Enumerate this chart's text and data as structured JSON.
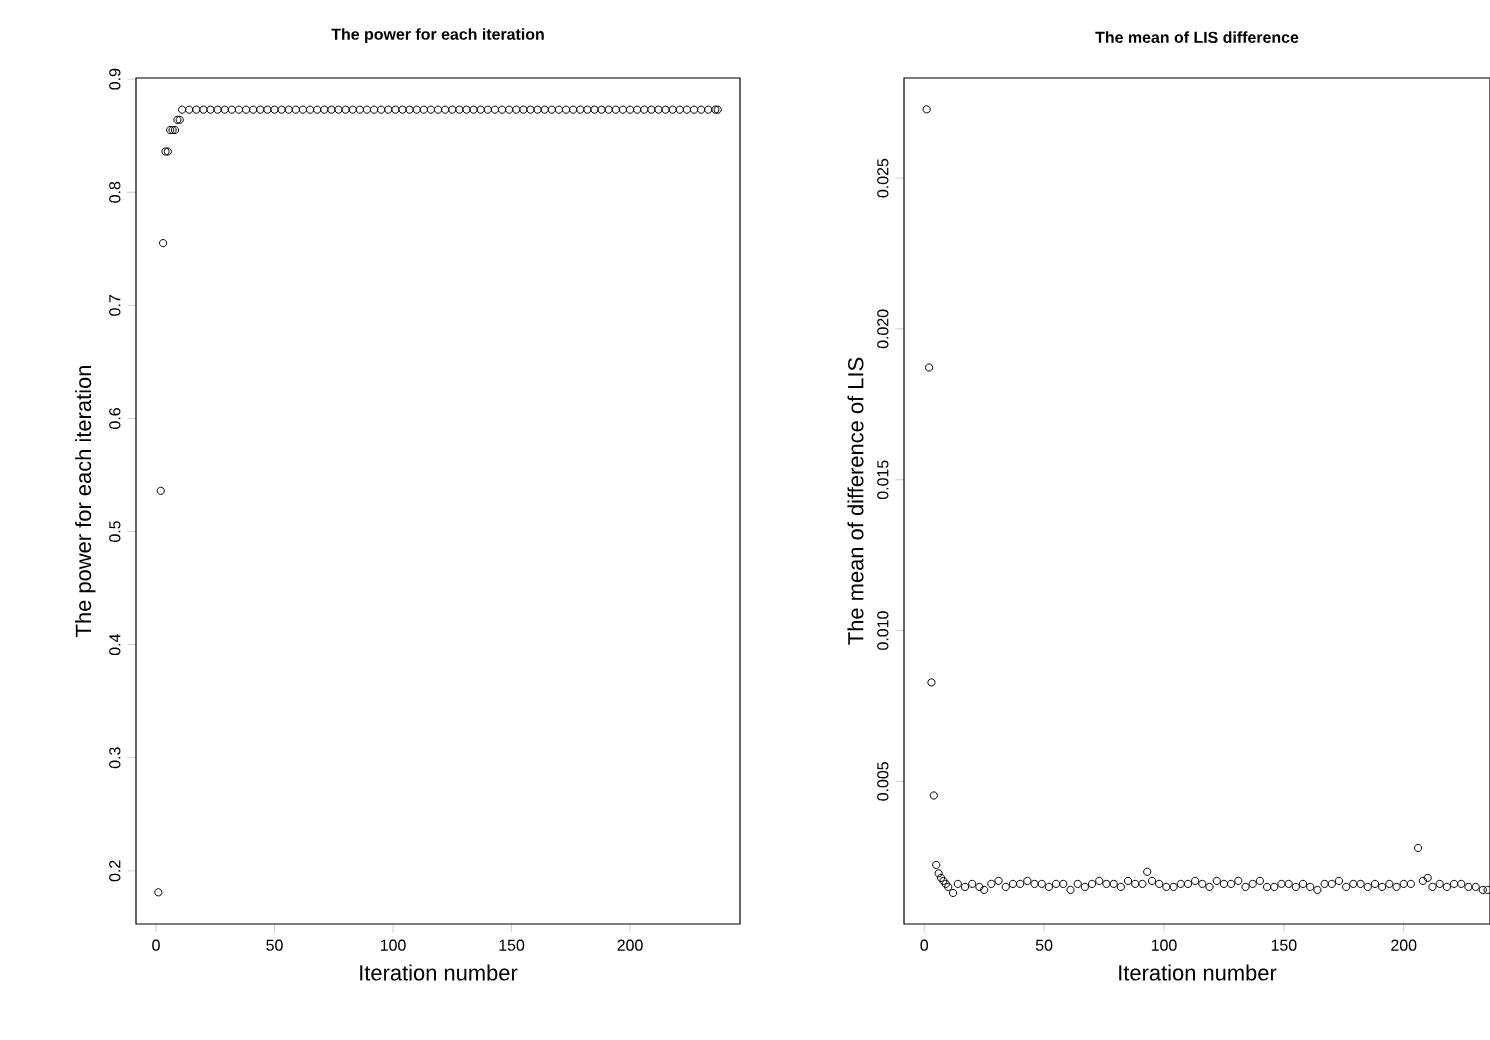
{
  "chart_data": [
    {
      "type": "scatter",
      "title": "The power for each iteration",
      "xlabel": "Iteration number",
      "ylabel": "The power for each iteration",
      "marker": "circle",
      "color": "#000000",
      "xlim": [
        -8.44,
        246.4
      ],
      "ylim": [
        0.153,
        0.901
      ],
      "xticks": [
        0,
        50,
        100,
        150,
        200
      ],
      "yticks": [
        0.2,
        0.3,
        0.4,
        0.5,
        0.6,
        0.7,
        0.8,
        0.9
      ],
      "x": [
        1,
        2,
        3,
        4,
        5,
        6,
        7,
        8,
        9,
        10,
        11,
        14,
        17,
        20,
        23,
        26,
        29,
        32,
        35,
        38,
        41,
        44,
        47,
        50,
        53,
        56,
        59,
        62,
        65,
        68,
        71,
        74,
        77,
        80,
        83,
        86,
        89,
        92,
        95,
        98,
        101,
        104,
        107,
        110,
        113,
        116,
        119,
        122,
        125,
        128,
        131,
        134,
        137,
        140,
        143,
        146,
        149,
        152,
        155,
        158,
        161,
        164,
        167,
        170,
        173,
        176,
        179,
        182,
        185,
        188,
        191,
        194,
        197,
        200,
        203,
        206,
        209,
        212,
        215,
        218,
        221,
        224,
        227,
        230,
        233,
        236,
        237
      ],
      "values": [
        0.181,
        0.536,
        0.755,
        0.836,
        0.836,
        0.855,
        0.855,
        0.855,
        0.864,
        0.864,
        0.873,
        0.873,
        0.873,
        0.873,
        0.873,
        0.873,
        0.873,
        0.873,
        0.873,
        0.873,
        0.873,
        0.873,
        0.873,
        0.873,
        0.873,
        0.873,
        0.873,
        0.873,
        0.873,
        0.873,
        0.873,
        0.873,
        0.873,
        0.873,
        0.873,
        0.873,
        0.873,
        0.873,
        0.873,
        0.873,
        0.873,
        0.873,
        0.873,
        0.873,
        0.873,
        0.873,
        0.873,
        0.873,
        0.873,
        0.873,
        0.873,
        0.873,
        0.873,
        0.873,
        0.873,
        0.873,
        0.873,
        0.873,
        0.873,
        0.873,
        0.873,
        0.873,
        0.873,
        0.873,
        0.873,
        0.873,
        0.873,
        0.873,
        0.873,
        0.873,
        0.873,
        0.873,
        0.873,
        0.873,
        0.873,
        0.873,
        0.873,
        0.873,
        0.873,
        0.873,
        0.873,
        0.873,
        0.873,
        0.873,
        0.873,
        0.873,
        0.873
      ]
    },
    {
      "type": "scatter",
      "title": "The mean of LIS difference",
      "xlabel": "Iteration number",
      "ylabel": "The mean of difference of LIS",
      "marker": "circle",
      "color": "#000000",
      "xlim": [
        -8.44,
        236
      ],
      "ylim": [
        0.00027,
        0.02832
      ],
      "xticks": [
        0,
        50,
        100,
        150,
        200
      ],
      "yticks": [
        0.005,
        {
          "value": 0.01,
          "label": "0.010"
        },
        0.015,
        {
          "value": 0.02,
          "label": "0.020"
        },
        0.025
      ],
      "x": [
        1,
        2,
        3,
        4,
        5,
        6,
        7,
        8,
        9,
        10,
        12,
        14,
        17,
        20,
        23,
        25,
        28,
        31,
        34,
        37,
        40,
        43,
        46,
        49,
        52,
        55,
        58,
        61,
        64,
        67,
        70,
        73,
        76,
        79,
        82,
        85,
        88,
        91,
        93,
        95,
        98,
        101,
        104,
        107,
        110,
        113,
        116,
        119,
        122,
        125,
        128,
        131,
        134,
        137,
        140,
        143,
        146,
        149,
        152,
        155,
        158,
        161,
        164,
        167,
        170,
        173,
        176,
        179,
        182,
        185,
        188,
        191,
        194,
        197,
        200,
        203,
        206,
        208,
        210,
        212,
        215,
        218,
        221,
        224,
        227,
        230,
        233,
        235
      ],
      "values": [
        0.02728,
        0.01872,
        0.00828,
        0.00453,
        0.00223,
        0.00195,
        0.0018,
        0.0017,
        0.0016,
        0.0015,
        0.0013,
        0.0016,
        0.0015,
        0.0016,
        0.0015,
        0.0014,
        0.0016,
        0.0017,
        0.0015,
        0.0016,
        0.0016,
        0.0017,
        0.0016,
        0.0016,
        0.0015,
        0.0016,
        0.0016,
        0.0014,
        0.0016,
        0.0015,
        0.0016,
        0.0017,
        0.0016,
        0.0016,
        0.0015,
        0.0017,
        0.0016,
        0.0016,
        0.002,
        0.0017,
        0.0016,
        0.0015,
        0.0015,
        0.0016,
        0.0016,
        0.0017,
        0.0016,
        0.0015,
        0.0017,
        0.0016,
        0.0016,
        0.0017,
        0.0015,
        0.0016,
        0.0017,
        0.0015,
        0.0015,
        0.0016,
        0.0016,
        0.0015,
        0.0016,
        0.0015,
        0.0014,
        0.0016,
        0.0016,
        0.0017,
        0.0015,
        0.0016,
        0.0016,
        0.0015,
        0.0016,
        0.0015,
        0.0016,
        0.0015,
        0.0016,
        0.0016,
        0.00279,
        0.0017,
        0.0018,
        0.0015,
        0.0016,
        0.0015,
        0.0016,
        0.0016,
        0.0015,
        0.0015,
        0.0014,
        0.0014
      ]
    }
  ]
}
